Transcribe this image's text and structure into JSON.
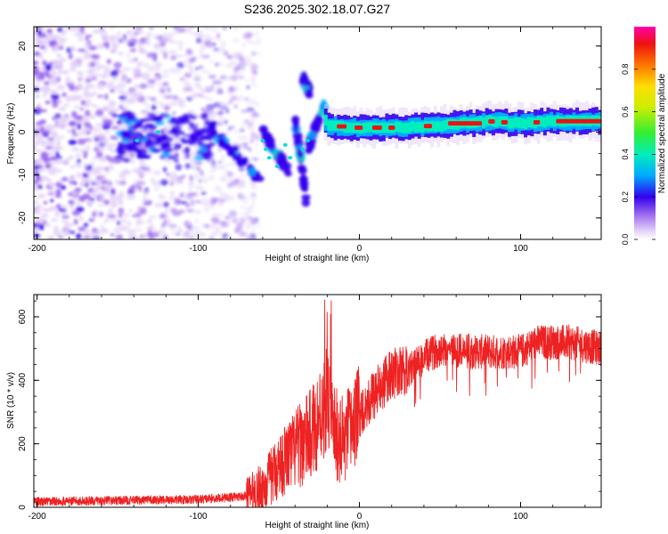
{
  "figure_title": "S236.2025.302.18.07.G27",
  "chart_data": [
    {
      "type": "heatmap",
      "title": "S236.2025.302.18.07.G27",
      "xlabel": "Height of straight line (km)",
      "ylabel": "Frequency (Hz)",
      "xlim": [
        -202,
        150
      ],
      "ylim": [
        -25,
        24.5
      ],
      "xticks": [
        -200,
        -100,
        0,
        100
      ],
      "yticks": [
        -20,
        -10,
        0,
        10,
        20
      ],
      "tick_labels": {
        "x": [
          "-200",
          "-100",
          "0",
          "100"
        ],
        "y": [
          "-20",
          "-10",
          "0",
          "10",
          "20"
        ]
      },
      "colorbar": {
        "label": "Normalized spectral amplitude",
        "range": [
          0,
          1
        ],
        "ticks": [
          0.0,
          0.2,
          0.4,
          0.6,
          0.8
        ],
        "tick_labels": [
          "0.0",
          "0.2",
          "0.4",
          "0.6",
          "0.8"
        ]
      },
      "ridge": {
        "description_points_km_hz": [
          [
            -20,
            1.5
          ],
          [
            0,
            1.0
          ],
          [
            20,
            1.0
          ],
          [
            50,
            1.5
          ],
          [
            80,
            2.5
          ],
          [
            100,
            2.0
          ],
          [
            120,
            2.5
          ],
          [
            150,
            2.5
          ]
        ]
      },
      "fan_branches": [
        {
          "x": [
            -92,
            -60
          ],
          "y": [
            1,
            -12
          ]
        },
        {
          "x": [
            -60,
            -44
          ],
          "y": [
            0,
            -9
          ]
        },
        {
          "x": [
            -40,
            -33
          ],
          "y": [
            3,
            -16
          ]
        },
        {
          "x": [
            -35,
            -31
          ],
          "y": [
            13,
            9
          ]
        },
        {
          "x": [
            -32,
            -22
          ],
          "y": [
            -4,
            6
          ]
        }
      ]
    },
    {
      "type": "line",
      "xlabel": "Height of straight line (km)",
      "ylabel": "SNR (10 * v/v)",
      "xlim": [
        -202,
        150
      ],
      "ylim": [
        0,
        670
      ],
      "xticks": [
        -200,
        -100,
        0,
        100
      ],
      "yticks": [
        0,
        200,
        400,
        600
      ],
      "tick_labels": {
        "x": [
          "-200",
          "-100",
          "0",
          "100"
        ],
        "y": [
          "0",
          "200",
          "400",
          "600"
        ]
      },
      "series": [
        {
          "name": "SNR",
          "color": "#ee2222",
          "x": [
            -202,
            -100,
            -70,
            -60,
            -50,
            -40,
            -30,
            -20,
            -15,
            -10,
            0,
            10,
            20,
            30,
            40,
            50,
            70,
            100,
            110,
            130,
            150
          ],
          "y": [
            18,
            25,
            35,
            60,
            130,
            180,
            230,
            340,
            230,
            200,
            300,
            360,
            420,
            430,
            470,
            500,
            490,
            490,
            520,
            520,
            500
          ]
        }
      ]
    }
  ]
}
